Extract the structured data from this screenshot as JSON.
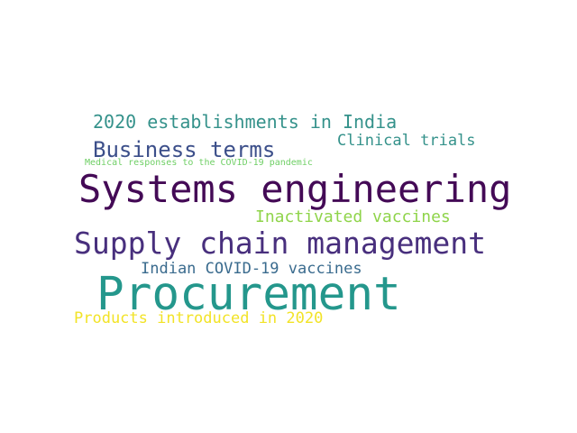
{
  "word_cloud": {
    "words": [
      {
        "text": "2020 establishments in India",
        "color": "#35928b"
      },
      {
        "text": "Clinical trials",
        "color": "#35928b"
      },
      {
        "text": "Business terms",
        "color": "#3c4f8a"
      },
      {
        "text": "Medical responses to the COVID-19 pandemic",
        "color": "#6fcf65"
      },
      {
        "text": "Systems engineering",
        "color": "#440a56"
      },
      {
        "text": "Inactivated vaccines",
        "color": "#8fd44a"
      },
      {
        "text": "Supply chain management",
        "color": "#482f7d"
      },
      {
        "text": "Indian COVID-19 vaccines",
        "color": "#3a6b8e"
      },
      {
        "text": "Procurement",
        "color": "#24978c"
      },
      {
        "text": "Products introduced in 2020",
        "color": "#f2e327"
      }
    ]
  }
}
